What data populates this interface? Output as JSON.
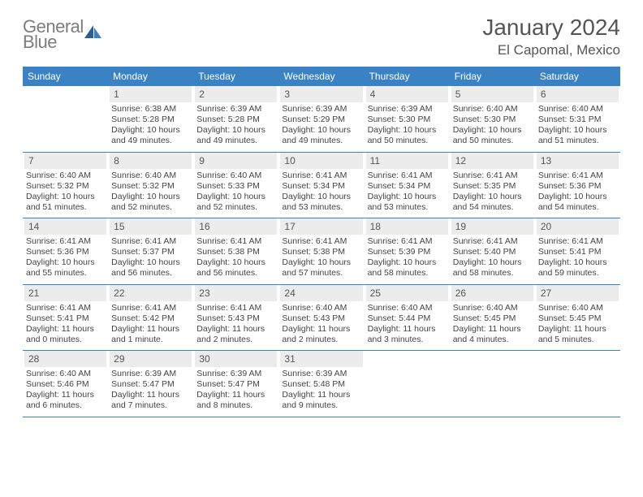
{
  "logo": {
    "general": "General",
    "blue": "Blue"
  },
  "title": "January 2024",
  "subtitle": "El Capomal, Mexico",
  "colors": {
    "accent": "#3b82c4",
    "daynum_bg": "#ececec",
    "text": "#444444",
    "title": "#555555",
    "logo_gray": "#7d7d7d"
  },
  "weekdays": [
    "Sunday",
    "Monday",
    "Tuesday",
    "Wednesday",
    "Thursday",
    "Friday",
    "Saturday"
  ],
  "start_offset": 1,
  "days": [
    {
      "n": 1,
      "sr": "6:38 AM",
      "ss": "5:28 PM",
      "dl": "10 hours and 49 minutes."
    },
    {
      "n": 2,
      "sr": "6:39 AM",
      "ss": "5:28 PM",
      "dl": "10 hours and 49 minutes."
    },
    {
      "n": 3,
      "sr": "6:39 AM",
      "ss": "5:29 PM",
      "dl": "10 hours and 49 minutes."
    },
    {
      "n": 4,
      "sr": "6:39 AM",
      "ss": "5:30 PM",
      "dl": "10 hours and 50 minutes."
    },
    {
      "n": 5,
      "sr": "6:40 AM",
      "ss": "5:30 PM",
      "dl": "10 hours and 50 minutes."
    },
    {
      "n": 6,
      "sr": "6:40 AM",
      "ss": "5:31 PM",
      "dl": "10 hours and 51 minutes."
    },
    {
      "n": 7,
      "sr": "6:40 AM",
      "ss": "5:32 PM",
      "dl": "10 hours and 51 minutes."
    },
    {
      "n": 8,
      "sr": "6:40 AM",
      "ss": "5:32 PM",
      "dl": "10 hours and 52 minutes."
    },
    {
      "n": 9,
      "sr": "6:40 AM",
      "ss": "5:33 PM",
      "dl": "10 hours and 52 minutes."
    },
    {
      "n": 10,
      "sr": "6:41 AM",
      "ss": "5:34 PM",
      "dl": "10 hours and 53 minutes."
    },
    {
      "n": 11,
      "sr": "6:41 AM",
      "ss": "5:34 PM",
      "dl": "10 hours and 53 minutes."
    },
    {
      "n": 12,
      "sr": "6:41 AM",
      "ss": "5:35 PM",
      "dl": "10 hours and 54 minutes."
    },
    {
      "n": 13,
      "sr": "6:41 AM",
      "ss": "5:36 PM",
      "dl": "10 hours and 54 minutes."
    },
    {
      "n": 14,
      "sr": "6:41 AM",
      "ss": "5:36 PM",
      "dl": "10 hours and 55 minutes."
    },
    {
      "n": 15,
      "sr": "6:41 AM",
      "ss": "5:37 PM",
      "dl": "10 hours and 56 minutes."
    },
    {
      "n": 16,
      "sr": "6:41 AM",
      "ss": "5:38 PM",
      "dl": "10 hours and 56 minutes."
    },
    {
      "n": 17,
      "sr": "6:41 AM",
      "ss": "5:38 PM",
      "dl": "10 hours and 57 minutes."
    },
    {
      "n": 18,
      "sr": "6:41 AM",
      "ss": "5:39 PM",
      "dl": "10 hours and 58 minutes."
    },
    {
      "n": 19,
      "sr": "6:41 AM",
      "ss": "5:40 PM",
      "dl": "10 hours and 58 minutes."
    },
    {
      "n": 20,
      "sr": "6:41 AM",
      "ss": "5:41 PM",
      "dl": "10 hours and 59 minutes."
    },
    {
      "n": 21,
      "sr": "6:41 AM",
      "ss": "5:41 PM",
      "dl": "11 hours and 0 minutes."
    },
    {
      "n": 22,
      "sr": "6:41 AM",
      "ss": "5:42 PM",
      "dl": "11 hours and 1 minute."
    },
    {
      "n": 23,
      "sr": "6:41 AM",
      "ss": "5:43 PM",
      "dl": "11 hours and 2 minutes."
    },
    {
      "n": 24,
      "sr": "6:40 AM",
      "ss": "5:43 PM",
      "dl": "11 hours and 2 minutes."
    },
    {
      "n": 25,
      "sr": "6:40 AM",
      "ss": "5:44 PM",
      "dl": "11 hours and 3 minutes."
    },
    {
      "n": 26,
      "sr": "6:40 AM",
      "ss": "5:45 PM",
      "dl": "11 hours and 4 minutes."
    },
    {
      "n": 27,
      "sr": "6:40 AM",
      "ss": "5:45 PM",
      "dl": "11 hours and 5 minutes."
    },
    {
      "n": 28,
      "sr": "6:40 AM",
      "ss": "5:46 PM",
      "dl": "11 hours and 6 minutes."
    },
    {
      "n": 29,
      "sr": "6:39 AM",
      "ss": "5:47 PM",
      "dl": "11 hours and 7 minutes."
    },
    {
      "n": 30,
      "sr": "6:39 AM",
      "ss": "5:47 PM",
      "dl": "11 hours and 8 minutes."
    },
    {
      "n": 31,
      "sr": "6:39 AM",
      "ss": "5:48 PM",
      "dl": "11 hours and 9 minutes."
    }
  ],
  "labels": {
    "sunrise": "Sunrise:",
    "sunset": "Sunset:",
    "daylight": "Daylight:"
  }
}
